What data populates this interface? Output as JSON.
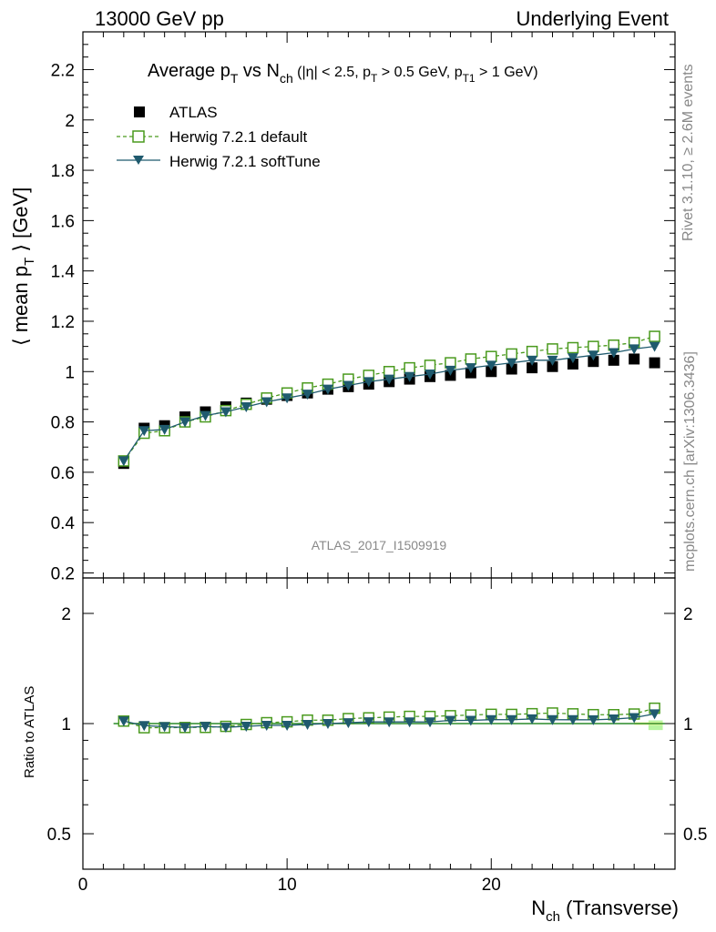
{
  "header": {
    "left": "13000 GeV pp",
    "right": "Underlying Event"
  },
  "side_text": {
    "rivet": "Rivet 3.1.10, ≥ 2.6M events",
    "mcplots": "mcplots.cern.ch [arXiv:1306.3436]"
  },
  "chart_data": {
    "type": "scatter",
    "title_parts": {
      "t1": "Average p",
      "t1_sub": "T",
      "t2": " vs N",
      "t2_sub": "ch",
      "t3": " (|η| < 2.5, p",
      "t3_sub": "T",
      "t4": " > 0.5 GeV, p",
      "t4_sub": "T1",
      "t5": " > 1 GeV)"
    },
    "ylabel_parts": {
      "a": "⟨ mean p",
      "sub": "T",
      "b": " ⟩ [GeV]"
    },
    "ratio_ylabel": "Ratio to ATLAS",
    "xlabel_parts": {
      "a": "N",
      "sub": "ch",
      "b": " (Transverse)"
    },
    "analysis_id": "ATLAS_2017_I1509919",
    "xlim": [
      0,
      29
    ],
    "ylim": [
      0.18,
      2.35
    ],
    "ratio_ylim": [
      0.4,
      2.5
    ],
    "ratio_log": true,
    "x_ticks": [
      0,
      10,
      20
    ],
    "y_ticks": [
      "0.2",
      "0.4",
      "0.6",
      "0.8",
      "1",
      "1.2",
      "1.4",
      "1.6",
      "1.8",
      "2",
      "2.2"
    ],
    "ratio_ticks": [
      "0.5",
      "1",
      "2"
    ],
    "legend_position": "top-left",
    "x": [
      2,
      3,
      4,
      5,
      6,
      7,
      8,
      9,
      10,
      11,
      12,
      13,
      14,
      15,
      16,
      17,
      18,
      19,
      20,
      21,
      22,
      23,
      24,
      25,
      26,
      27,
      28
    ],
    "series": [
      {
        "name": "ATLAS",
        "color": "#000000",
        "values": [
          0.635,
          0.775,
          0.785,
          0.82,
          0.84,
          0.86,
          0.875,
          0.89,
          0.905,
          0.915,
          0.93,
          0.94,
          0.95,
          0.96,
          0.97,
          0.98,
          0.985,
          0.995,
          1.0,
          1.01,
          1.015,
          1.02,
          1.03,
          1.04,
          1.045,
          1.05,
          1.035
        ]
      },
      {
        "name": "Herwig 7.2.1 default",
        "color": "#4a9a1e",
        "values": [
          0.645,
          0.755,
          0.765,
          0.8,
          0.82,
          0.845,
          0.87,
          0.895,
          0.915,
          0.935,
          0.95,
          0.97,
          0.985,
          1.0,
          1.015,
          1.025,
          1.035,
          1.05,
          1.06,
          1.07,
          1.08,
          1.09,
          1.095,
          1.1,
          1.105,
          1.115,
          1.14
        ]
      },
      {
        "name": "Herwig 7.2.1 softTune",
        "color": "#1f5a6e",
        "values": [
          0.645,
          0.765,
          0.77,
          0.8,
          0.825,
          0.84,
          0.86,
          0.88,
          0.895,
          0.91,
          0.93,
          0.945,
          0.96,
          0.97,
          0.98,
          0.99,
          1.005,
          1.015,
          1.025,
          1.035,
          1.045,
          1.045,
          1.055,
          1.065,
          1.075,
          1.09,
          1.1
        ]
      }
    ]
  }
}
